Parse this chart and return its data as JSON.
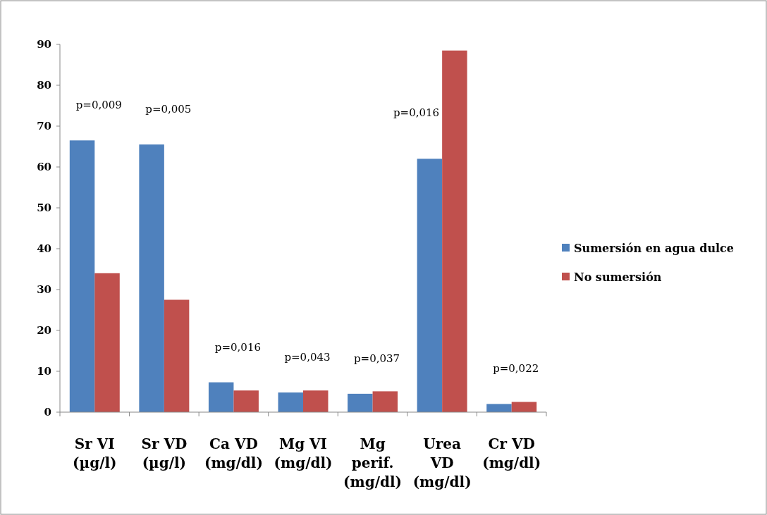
{
  "chart_data": {
    "type": "bar",
    "categories": [
      "Sr VI (µg/l)",
      "Sr VD (µg/l)",
      "Ca VD (mg/dl)",
      "Mg VI (mg/dl)",
      "Mg perif. (mg/dl)",
      "Urea VD (mg/dl)",
      "Cr VD (mg/dl)"
    ],
    "series": [
      {
        "name": "Sumersión en agua dulce",
        "color": "#4f81bd",
        "values": [
          66.5,
          65.5,
          7.3,
          4.8,
          4.5,
          62,
          2
        ]
      },
      {
        "name": "No sumersión",
        "color": "#c0504d",
        "values": [
          34,
          27.5,
          5.3,
          5.3,
          5.1,
          88.5,
          2.5
        ]
      }
    ],
    "ylim": [
      0,
      90
    ],
    "yticks": [
      0,
      10,
      20,
      30,
      40,
      50,
      60,
      70,
      80,
      90
    ],
    "grid": false,
    "legend": "right",
    "annotations": [
      "p=0,009",
      "p=0,005",
      "p=0,016",
      "p=0,043",
      "p=0,037",
      "p=0,016",
      "p=0,022"
    ]
  }
}
